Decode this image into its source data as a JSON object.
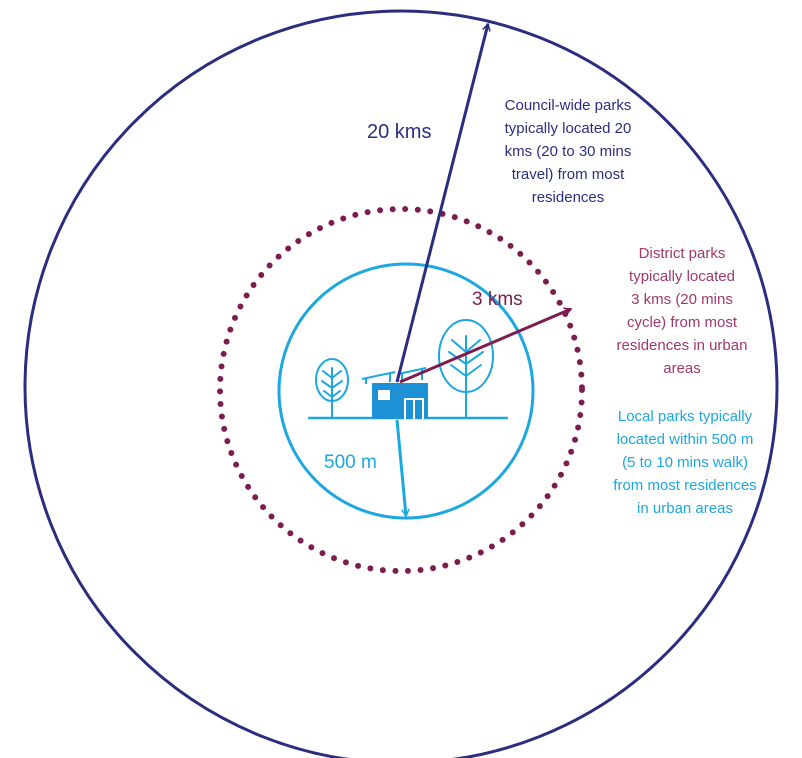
{
  "colors": {
    "council": "#2b2e7f",
    "district": "#7d1d4f",
    "district_text": "#a0386b",
    "local": "#1ca7e0",
    "house": "#1e90d6"
  },
  "rings": {
    "council": {
      "radius_label": "20 kms",
      "description": [
        "Council-wide parks",
        "typically located 20",
        "kms (20 to 30 mins",
        "travel) from most",
        "residences"
      ]
    },
    "district": {
      "radius_label": "3 kms",
      "description": [
        "District parks",
        "typically located",
        "3 kms (20 mins",
        "cycle) from most",
        "residences in urban",
        "areas"
      ]
    },
    "local": {
      "radius_label": "500 m",
      "description": [
        "Local parks typically",
        "located within 500 m",
        "(5 to 10 mins walk)",
        "from most residences",
        "in urban areas"
      ]
    }
  },
  "icons": [
    "house-icon",
    "small-tree-icon",
    "large-tree-icon",
    "solar-panel-icon"
  ]
}
